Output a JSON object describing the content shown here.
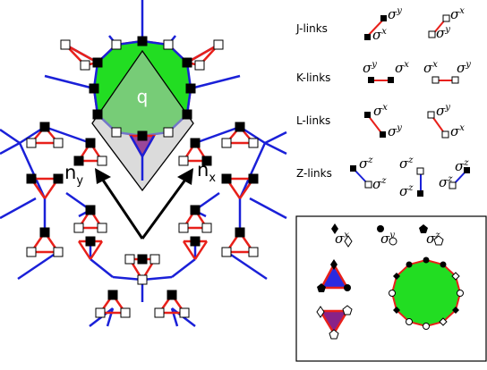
{
  "lattice": {
    "plaquette_label": "q",
    "vector_labels": {
      "left": "n_y",
      "right": "n_x"
    },
    "colors": {
      "bond_red": "#e8201a",
      "bond_blue": "#1a20d8",
      "plaquette_green": "#22dd22",
      "unit_cell_gray": "#d9d9d9",
      "triangle_blue": "#2a2ae0",
      "triangle_purple": "#882288"
    }
  },
  "links": [
    {
      "label": "J-links",
      "ops": [
        "σ^y σ^x",
        "σ^x σ^y"
      ]
    },
    {
      "label": "K-links",
      "ops": [
        "σ^y σ^x",
        "σ^x σ^y"
      ]
    },
    {
      "label": "L-links",
      "ops": [
        "σ^x σ^y",
        "σ^y σ^x"
      ]
    },
    {
      "label": "Z-links",
      "ops": [
        "σ^z σ^z",
        "σ^z σ^z",
        "σ^z σ^z"
      ]
    }
  ],
  "legend_box": {
    "symbols": [
      {
        "marker": "diamond",
        "op": "σ^x"
      },
      {
        "marker": "circle",
        "op": "σ^y"
      },
      {
        "marker": "pentagon",
        "op": "σ^z"
      }
    ]
  }
}
